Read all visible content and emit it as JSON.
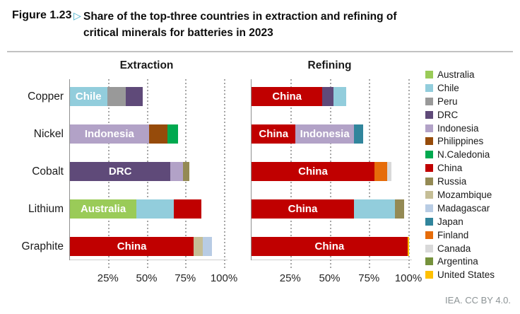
{
  "header": {
    "figure_label": "Figure 1.23",
    "marker": "▷",
    "title_line1": "Share of the top-three countries in extraction and refining of",
    "title_line2": "critical minerals for batteries in 2023"
  },
  "footer": {
    "credit": "IEA. CC BY 4.0."
  },
  "colors": {
    "Australia": "#9ACB58",
    "Chile": "#92CDDC",
    "Peru": "#999999",
    "DRC": "#5F4A79",
    "Indonesia": "#B2A2C7",
    "Philippines": "#964B0A",
    "N.Caledonia": "#00A94F",
    "China": "#C00000",
    "Russia": "#948A54",
    "Mozambique": "#C5BE96",
    "Madagascar": "#B8CCE4",
    "Japan": "#31859C",
    "Finland": "#E66C0A",
    "Canada": "#D9D9D9",
    "Argentina": "#76923C",
    "United States": "#FFC000"
  },
  "legend": [
    "Australia",
    "Chile",
    "Peru",
    "DRC",
    "Indonesia",
    "Philippines",
    "N.Caledonia",
    "China",
    "Russia",
    "Mozambique",
    "Madagascar",
    "Japan",
    "Finland",
    "Canada",
    "Argentina",
    "United States"
  ],
  "chart_data": [
    {
      "type": "bar",
      "orientation": "horizontal",
      "stacked": true,
      "title": "Extraction",
      "categories": [
        "Copper",
        "Nickel",
        "Cobalt",
        "Lithium",
        "Graphite"
      ],
      "xlim": [
        0,
        100
      ],
      "grid": "dotted-vertical",
      "ticks": [
        {
          "label": "25%",
          "value": 25
        },
        {
          "label": "50%",
          "value": 50
        },
        {
          "label": "75%",
          "value": 75
        },
        {
          "label": "100%",
          "value": 100
        }
      ],
      "rows": [
        {
          "mineral": "Copper",
          "segments": [
            {
              "country": "Chile",
              "value": 24,
              "show_label": true
            },
            {
              "country": "Peru",
              "value": 12
            },
            {
              "country": "DRC",
              "value": 11
            }
          ]
        },
        {
          "mineral": "Nickel",
          "segments": [
            {
              "country": "Indonesia",
              "value": 51,
              "show_label": true
            },
            {
              "country": "Philippines",
              "value": 12
            },
            {
              "country": "N.Caledonia",
              "value": 7
            }
          ]
        },
        {
          "mineral": "Cobalt",
          "segments": [
            {
              "country": "DRC",
              "value": 65,
              "show_label": true
            },
            {
              "country": "Indonesia",
              "value": 8
            },
            {
              "country": "Russia",
              "value": 4
            }
          ]
        },
        {
          "mineral": "Lithium",
          "segments": [
            {
              "country": "Australia",
              "value": 43,
              "show_label": true
            },
            {
              "country": "Chile",
              "value": 24
            },
            {
              "country": "China",
              "value": 18
            }
          ]
        },
        {
          "mineral": "Graphite",
          "segments": [
            {
              "country": "China",
              "value": 80,
              "show_label": true
            },
            {
              "country": "Mozambique",
              "value": 6
            },
            {
              "country": "Madagascar",
              "value": 6
            }
          ]
        }
      ]
    },
    {
      "type": "bar",
      "orientation": "horizontal",
      "stacked": true,
      "title": "Refining",
      "categories": [
        "Copper",
        "Nickel",
        "Cobalt",
        "Lithium",
        "Graphite"
      ],
      "xlim": [
        0,
        100
      ],
      "grid": "dotted-vertical",
      "ticks": [
        {
          "label": "25%",
          "value": 25
        },
        {
          "label": "50%",
          "value": 50
        },
        {
          "label": "75%",
          "value": 75
        },
        {
          "label": "100%",
          "value": 100
        }
      ],
      "rows": [
        {
          "mineral": "Copper",
          "segments": [
            {
              "country": "China",
              "value": 45,
              "show_label": true
            },
            {
              "country": "DRC",
              "value": 7
            },
            {
              "country": "Chile",
              "value": 8
            }
          ]
        },
        {
          "mineral": "Nickel",
          "segments": [
            {
              "country": "China",
              "value": 28,
              "show_label": true
            },
            {
              "country": "Indonesia",
              "value": 37,
              "show_label": true
            },
            {
              "country": "Japan",
              "value": 6
            }
          ]
        },
        {
          "mineral": "Cobalt",
          "segments": [
            {
              "country": "China",
              "value": 78,
              "show_label": true
            },
            {
              "country": "Finland",
              "value": 8
            },
            {
              "country": "Canada",
              "value": 3
            }
          ]
        },
        {
          "mineral": "Lithium",
          "segments": [
            {
              "country": "China",
              "value": 65,
              "show_label": true
            },
            {
              "country": "Chile",
              "value": 26
            },
            {
              "country": "Russia",
              "value": 6
            }
          ]
        },
        {
          "mineral": "Graphite",
          "segments": [
            {
              "country": "China",
              "value": 99,
              "show_label": true
            },
            {
              "country": "United States",
              "value": 1
            }
          ]
        }
      ]
    }
  ]
}
